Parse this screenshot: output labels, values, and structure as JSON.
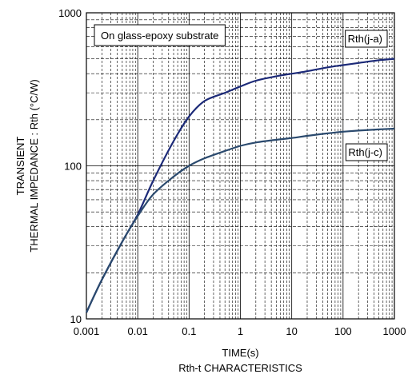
{
  "chart_data": {
    "type": "line",
    "caption": "Rth-t CHARACTERISTICS",
    "xlabel": "TIME(s)",
    "ylabel_lines": [
      "TRANSIENT",
      "THERMAL IMPEDANCE : Rth    (°C/W)"
    ],
    "xscale": "log",
    "yscale": "log",
    "xlim": [
      0.001,
      1000
    ],
    "ylim": [
      10,
      1000
    ],
    "x_ticks": [
      "0.001",
      "0.01",
      "0.1",
      "1",
      "10",
      "100",
      "1000"
    ],
    "y_ticks": [
      "10",
      "100",
      "1000"
    ],
    "grid": true,
    "annotation": "On glass-epoxy substrate",
    "series": [
      {
        "name": "Rth(j-a)",
        "color": "#1c2a78",
        "x": [
          0.001,
          0.002,
          0.005,
          0.01,
          0.02,
          0.05,
          0.1,
          0.2,
          0.5,
          1,
          2,
          5,
          10,
          20,
          50,
          100,
          200,
          500,
          1000
        ],
        "y": [
          11,
          18,
          32,
          48,
          80,
          145,
          210,
          265,
          300,
          330,
          360,
          385,
          400,
          415,
          440,
          455,
          470,
          490,
          500
        ]
      },
      {
        "name": "Rth(j-c)",
        "color": "#2b4a6e",
        "x": [
          0.001,
          0.002,
          0.005,
          0.01,
          0.02,
          0.05,
          0.1,
          0.2,
          0.5,
          1,
          2,
          5,
          10,
          20,
          50,
          100,
          200,
          500,
          1000
        ],
        "y": [
          11,
          18,
          32,
          47,
          65,
          85,
          100,
          112,
          125,
          135,
          142,
          148,
          152,
          157,
          163,
          167,
          170,
          173,
          175
        ]
      }
    ],
    "series_labels": [
      "Rth(j-a)",
      "Rth(j-c)"
    ]
  }
}
